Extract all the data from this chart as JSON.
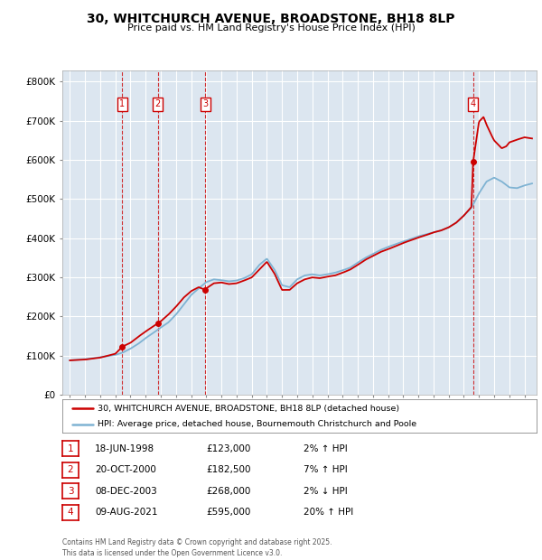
{
  "title_line1": "30, WHITCHURCH AVENUE, BROADSTONE, BH18 8LP",
  "title_line2": "Price paid vs. HM Land Registry's House Price Index (HPI)",
  "legend_label1": "30, WHITCHURCH AVENUE, BROADSTONE, BH18 8LP (detached house)",
  "legend_label2": "HPI: Average price, detached house, Bournemouth Christchurch and Poole",
  "footer": "Contains HM Land Registry data © Crown copyright and database right 2025.\nThis data is licensed under the Open Government Licence v3.0.",
  "transactions": [
    {
      "num": 1,
      "date": "18-JUN-1998",
      "price": 123000,
      "year": 1998.46,
      "hpi_pct": "2% ↑ HPI"
    },
    {
      "num": 2,
      "date": "20-OCT-2000",
      "price": 182500,
      "year": 2000.8,
      "hpi_pct": "7% ↑ HPI"
    },
    {
      "num": 3,
      "date": "08-DEC-2003",
      "price": 268000,
      "year": 2003.93,
      "hpi_pct": "2% ↓ HPI"
    },
    {
      "num": 4,
      "date": "09-AUG-2021",
      "price": 595000,
      "year": 2021.61,
      "hpi_pct": "20% ↑ HPI"
    }
  ],
  "background_color": "#ffffff",
  "plot_bg_color": "#dce6f0",
  "grid_color": "#ffffff",
  "red_color": "#cc0000",
  "blue_color": "#7fb3d3",
  "ylim": [
    0,
    830000
  ],
  "yticks": [
    0,
    100000,
    200000,
    300000,
    400000,
    500000,
    600000,
    700000,
    800000
  ],
  "ytick_labels": [
    "£0",
    "£100K",
    "£200K",
    "£300K",
    "£400K",
    "£500K",
    "£600K",
    "£700K",
    "£800K"
  ],
  "xlim_start": 1994.5,
  "xlim_end": 2025.8
}
